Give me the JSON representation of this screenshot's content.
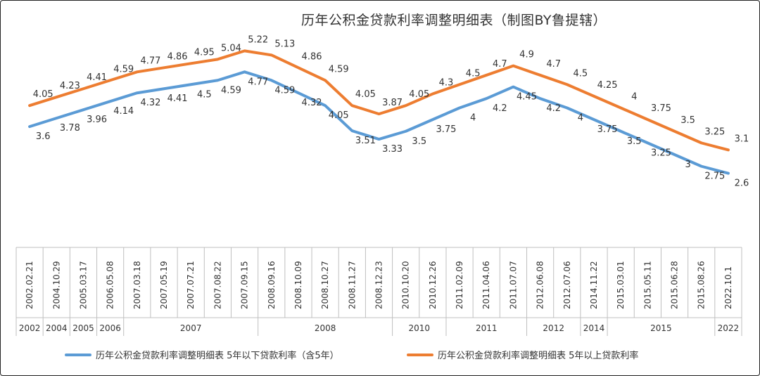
{
  "chart_data": {
    "type": "line",
    "title": "历年公积金贷款利率调整明细表（制图BY鲁提辖）",
    "categories": [
      "2002.02.21",
      "2004.10.29",
      "2005.03.17",
      "2006.05.08",
      "2007.03.18",
      "2007.05.19",
      "2007.07.21",
      "2007.08.22",
      "2007.09.15",
      "2008.09.16",
      "2008.10.09",
      "2008.10.27",
      "2008.11.27",
      "2008.12.23",
      "2010.10.20",
      "2010.12.26",
      "2011.02.09",
      "2011.04.06",
      "2011.07.07",
      "2012.06.08",
      "2012.07.06",
      "2014.11.22",
      "2015.03.01",
      "2015.05.11",
      "2015.06.28",
      "2015.08.26",
      "2022.10.1"
    ],
    "year_groups": [
      {
        "label": "2002",
        "span": 1
      },
      {
        "label": "2004",
        "span": 1
      },
      {
        "label": "2005",
        "span": 1
      },
      {
        "label": "2006",
        "span": 1
      },
      {
        "label": "2007",
        "span": 5
      },
      {
        "label": "2008",
        "span": 5
      },
      {
        "label": "2010",
        "span": 2
      },
      {
        "label": "2011",
        "span": 3
      },
      {
        "label": "2012",
        "span": 2
      },
      {
        "label": "2014",
        "span": 1
      },
      {
        "label": "2015",
        "span": 4
      },
      {
        "label": "2022",
        "span": 1
      }
    ],
    "series": [
      {
        "name": "历年公积金贷款利率调整明细表 5年以下贷款利率（含5年）",
        "color": "#5b9bd5",
        "values": [
          3.6,
          3.78,
          3.96,
          4.14,
          4.32,
          4.41,
          4.5,
          4.59,
          4.77,
          4.59,
          4.32,
          4.05,
          3.51,
          3.33,
          3.5,
          3.75,
          4,
          4.2,
          4.45,
          4.2,
          4,
          3.75,
          3.5,
          3.25,
          3,
          2.75,
          2.6
        ]
      },
      {
        "name": "历年公积金贷款利率调整明细表 5年以上贷款利率",
        "color": "#ed7d31",
        "values": [
          4.05,
          4.23,
          4.41,
          4.59,
          4.77,
          4.86,
          4.95,
          5.04,
          5.22,
          5.13,
          4.86,
          4.59,
          4.05,
          3.87,
          4.05,
          4.3,
          4.5,
          4.7,
          4.9,
          4.7,
          4.5,
          4.25,
          4,
          3.75,
          3.5,
          3.25,
          3.1
        ]
      }
    ],
    "ylim": [
      0,
      6
    ],
    "grid": false,
    "legend_position": "bottom"
  }
}
